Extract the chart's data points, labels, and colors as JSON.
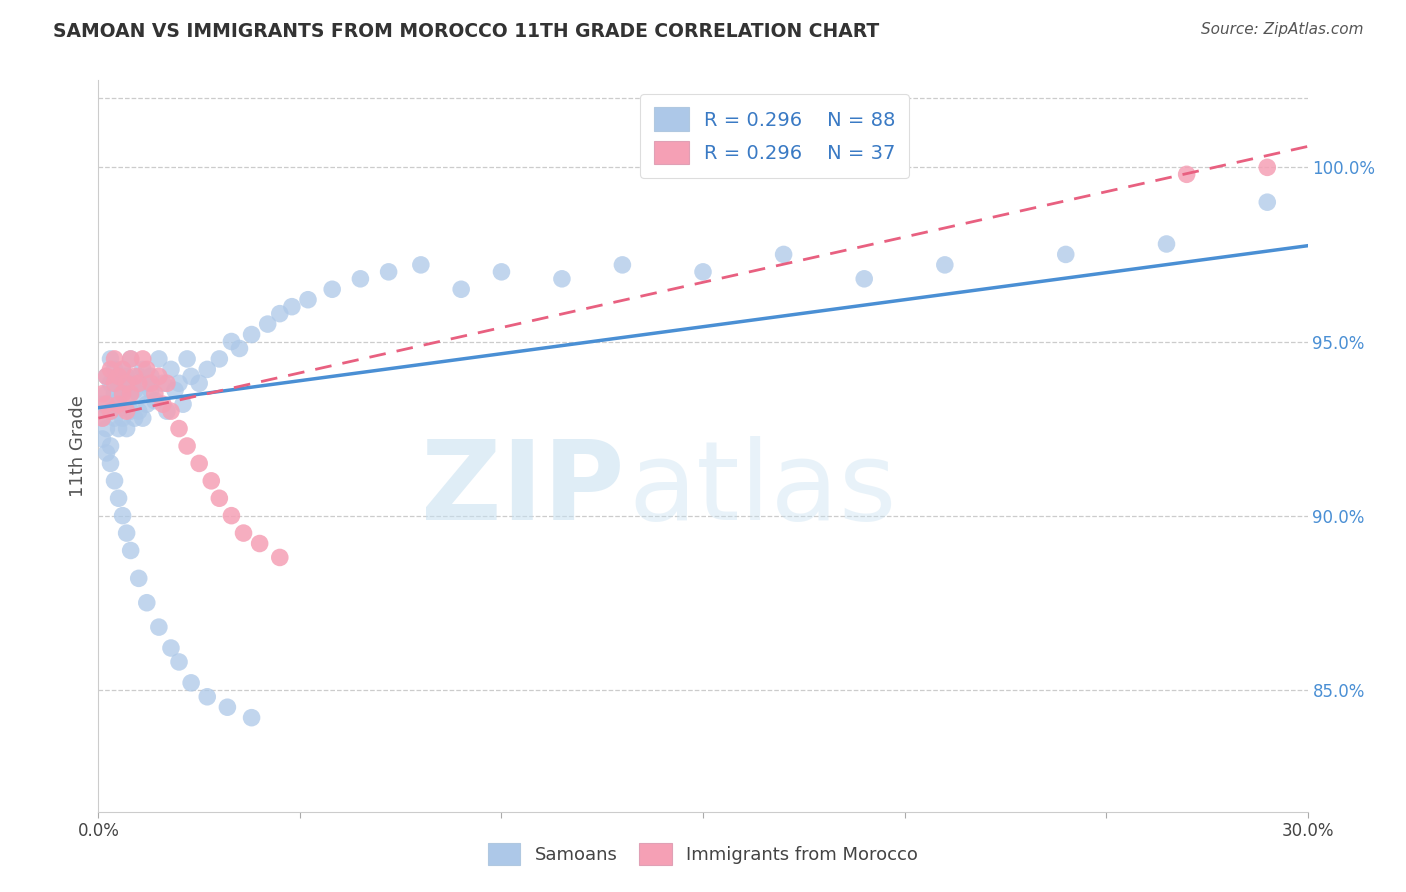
{
  "title": "SAMOAN VS IMMIGRANTS FROM MOROCCO 11TH GRADE CORRELATION CHART",
  "source": "Source: ZipAtlas.com",
  "ylabel": "11th Grade",
  "blue_color": "#adc8e8",
  "pink_color": "#f5a0b5",
  "blue_line_color": "#4a8fd4",
  "pink_line_color": "#e86080",
  "xmin": 0.0,
  "xmax": 0.3,
  "ymin": 0.815,
  "ymax": 1.025,
  "yticks": [
    0.85,
    0.9,
    0.95,
    1.0
  ],
  "xticks": [
    0.0,
    0.05,
    0.1,
    0.15,
    0.2,
    0.25,
    0.3
  ],
  "legend_labels": [
    "R = 0.296    N = 88",
    "R = 0.296    N = 37"
  ],
  "bottom_labels": [
    "Samoans",
    "Immigrants from Morocco"
  ],
  "blue_intercept": 0.931,
  "blue_slope": 0.155,
  "pink_intercept": 0.928,
  "pink_slope": 0.26,
  "samoans_x": [
    0.001,
    0.001,
    0.002,
    0.002,
    0.002,
    0.003,
    0.003,
    0.003,
    0.003,
    0.004,
    0.004,
    0.004,
    0.005,
    0.005,
    0.005,
    0.005,
    0.006,
    0.006,
    0.006,
    0.007,
    0.007,
    0.007,
    0.008,
    0.008,
    0.008,
    0.009,
    0.009,
    0.01,
    0.01,
    0.01,
    0.011,
    0.011,
    0.012,
    0.012,
    0.013,
    0.013,
    0.014,
    0.015,
    0.016,
    0.017,
    0.018,
    0.019,
    0.02,
    0.021,
    0.022,
    0.023,
    0.025,
    0.027,
    0.03,
    0.033,
    0.035,
    0.038,
    0.042,
    0.045,
    0.048,
    0.052,
    0.058,
    0.065,
    0.072,
    0.08,
    0.09,
    0.1,
    0.115,
    0.13,
    0.15,
    0.17,
    0.19,
    0.21,
    0.24,
    0.265,
    0.001,
    0.002,
    0.003,
    0.004,
    0.005,
    0.006,
    0.007,
    0.008,
    0.01,
    0.012,
    0.015,
    0.018,
    0.02,
    0.023,
    0.027,
    0.032,
    0.038,
    0.29
  ],
  "samoans_y": [
    0.932,
    0.928,
    0.935,
    0.94,
    0.925,
    0.938,
    0.93,
    0.945,
    0.92,
    0.935,
    0.942,
    0.928,
    0.94,
    0.933,
    0.938,
    0.925,
    0.936,
    0.942,
    0.928,
    0.94,
    0.933,
    0.925,
    0.938,
    0.945,
    0.93,
    0.936,
    0.928,
    0.94,
    0.935,
    0.93,
    0.942,
    0.928,
    0.938,
    0.932,
    0.94,
    0.936,
    0.933,
    0.945,
    0.938,
    0.93,
    0.942,
    0.936,
    0.938,
    0.932,
    0.945,
    0.94,
    0.938,
    0.942,
    0.945,
    0.95,
    0.948,
    0.952,
    0.955,
    0.958,
    0.96,
    0.962,
    0.965,
    0.968,
    0.97,
    0.972,
    0.965,
    0.97,
    0.968,
    0.972,
    0.97,
    0.975,
    0.968,
    0.972,
    0.975,
    0.978,
    0.922,
    0.918,
    0.915,
    0.91,
    0.905,
    0.9,
    0.895,
    0.89,
    0.882,
    0.875,
    0.868,
    0.862,
    0.858,
    0.852,
    0.848,
    0.845,
    0.842,
    0.99
  ],
  "morocco_x": [
    0.001,
    0.001,
    0.002,
    0.002,
    0.003,
    0.003,
    0.004,
    0.004,
    0.005,
    0.005,
    0.006,
    0.006,
    0.007,
    0.007,
    0.008,
    0.008,
    0.009,
    0.01,
    0.011,
    0.012,
    0.013,
    0.014,
    0.015,
    0.016,
    0.017,
    0.018,
    0.02,
    0.022,
    0.025,
    0.028,
    0.03,
    0.033,
    0.036,
    0.04,
    0.045,
    0.27,
    0.29
  ],
  "morocco_y": [
    0.935,
    0.928,
    0.94,
    0.932,
    0.942,
    0.93,
    0.938,
    0.945,
    0.932,
    0.94,
    0.935,
    0.942,
    0.938,
    0.93,
    0.945,
    0.935,
    0.94,
    0.938,
    0.945,
    0.942,
    0.938,
    0.935,
    0.94,
    0.932,
    0.938,
    0.93,
    0.925,
    0.92,
    0.915,
    0.91,
    0.905,
    0.9,
    0.895,
    0.892,
    0.888,
    0.998,
    1.0
  ]
}
